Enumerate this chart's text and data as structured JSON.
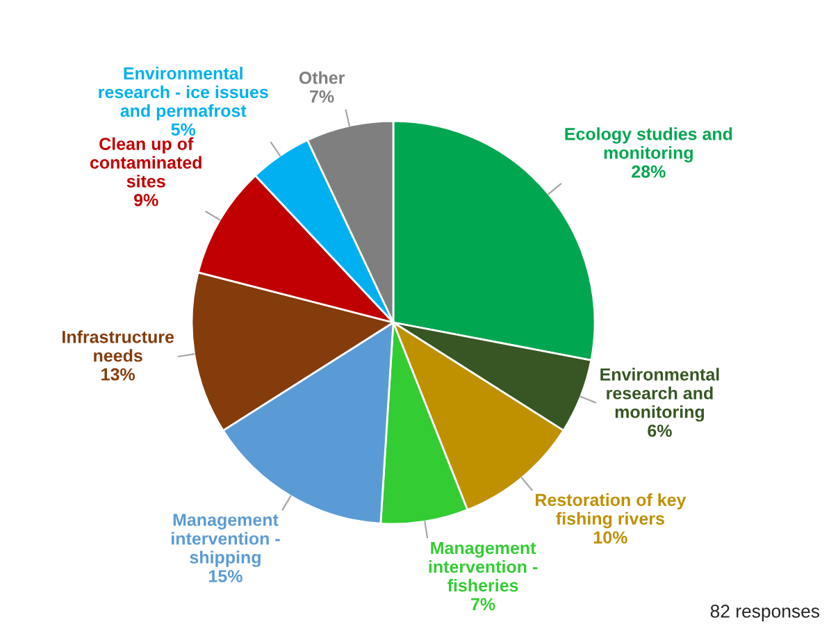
{
  "chart_data": {
    "type": "pie",
    "categories": [
      "Ecology studies and\nmonitoring",
      "Environmental\nresearch and\nmonitoring",
      "Restoration of key\nfishing rivers",
      "Management\nintervention -\nfisheries",
      "Management\nintervention -\nshipping",
      "Infrastructure\nneeds",
      "Clean up of\ncontaminated\nsites",
      "Environmental\nresearch - ice issues\nand permafrost",
      "Other"
    ],
    "values": [
      28,
      6,
      10,
      7,
      15,
      13,
      9,
      5,
      7
    ],
    "value_labels": [
      "28%",
      "6%",
      "10%",
      "7%",
      "15%",
      "13%",
      "9%",
      "5%",
      "7%"
    ],
    "colors": [
      "#00a650",
      "#375623",
      "#bf9000",
      "#33cc33",
      "#5b9bd5",
      "#843c0c",
      "#c00000",
      "#00b0f0",
      "#7f7f7f"
    ],
    "annotations": [
      "82 responses"
    ],
    "legend": false
  }
}
